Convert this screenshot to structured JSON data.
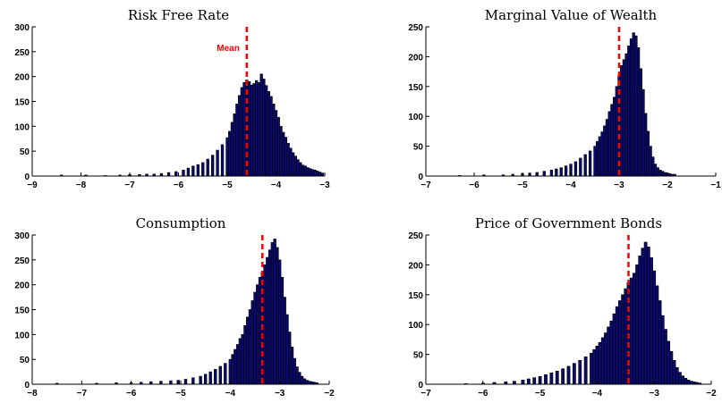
{
  "chart_data": [
    {
      "type": "bar",
      "title": "Risk Free Rate",
      "xlim": [
        -9,
        -3
      ],
      "ylim": [
        0,
        300
      ],
      "xticks": [
        -9,
        -8,
        -7,
        -6,
        -5,
        -4,
        -3
      ],
      "yticks": [
        0,
        50,
        100,
        150,
        200,
        250,
        300
      ],
      "mean": -4.6,
      "mean_label": "Mean",
      "bins": [
        [
          -8.4,
          2
        ],
        [
          -7.9,
          2
        ],
        [
          -7.5,
          1
        ],
        [
          -7.2,
          2
        ],
        [
          -7.0,
          3
        ],
        [
          -6.8,
          3
        ],
        [
          -6.65,
          4
        ],
        [
          -6.5,
          4
        ],
        [
          -6.35,
          5
        ],
        [
          -6.2,
          7
        ],
        [
          -6.05,
          9
        ],
        [
          -5.9,
          12
        ],
        [
          -5.8,
          16
        ],
        [
          -5.7,
          20
        ],
        [
          -5.6,
          23
        ],
        [
          -5.5,
          27
        ],
        [
          -5.4,
          34
        ],
        [
          -5.3,
          42
        ],
        [
          -5.2,
          52
        ],
        [
          -5.1,
          63
        ],
        [
          -5.0,
          77
        ],
        [
          -4.95,
          90
        ],
        [
          -4.9,
          108
        ],
        [
          -4.85,
          125
        ],
        [
          -4.8,
          145
        ],
        [
          -4.75,
          162
        ],
        [
          -4.7,
          178
        ],
        [
          -4.65,
          188
        ],
        [
          -4.6,
          193
        ],
        [
          -4.55,
          190
        ],
        [
          -4.5,
          183
        ],
        [
          -4.45,
          186
        ],
        [
          -4.4,
          192
        ],
        [
          -4.35,
          188
        ],
        [
          -4.3,
          205
        ],
        [
          -4.25,
          195
        ],
        [
          -4.2,
          182
        ],
        [
          -4.15,
          170
        ],
        [
          -4.1,
          160
        ],
        [
          -4.05,
          145
        ],
        [
          -4.0,
          132
        ],
        [
          -3.95,
          118
        ],
        [
          -3.9,
          100
        ],
        [
          -3.85,
          88
        ],
        [
          -3.8,
          78
        ],
        [
          -3.75,
          66
        ],
        [
          -3.7,
          56
        ],
        [
          -3.65,
          47
        ],
        [
          -3.6,
          40
        ],
        [
          -3.55,
          33
        ],
        [
          -3.5,
          27
        ],
        [
          -3.45,
          22
        ],
        [
          -3.4,
          20
        ],
        [
          -3.35,
          17
        ],
        [
          -3.3,
          15
        ],
        [
          -3.25,
          13
        ],
        [
          -3.2,
          12
        ],
        [
          -3.15,
          10
        ],
        [
          -3.1,
          8
        ],
        [
          -3.05,
          6
        ]
      ]
    },
    {
      "type": "bar",
      "title": "Marginal Value of Wealth",
      "xlim": [
        -7,
        -1
      ],
      "ylim": [
        0,
        250
      ],
      "xticks": [
        -7,
        -6,
        -5,
        -4,
        -3,
        -2,
        -1
      ],
      "yticks": [
        0,
        50,
        100,
        150,
        200,
        250
      ],
      "mean": -3.0,
      "bins": [
        [
          -6.3,
          1
        ],
        [
          -5.8,
          2
        ],
        [
          -5.4,
          2
        ],
        [
          -5.2,
          3
        ],
        [
          -5.0,
          4
        ],
        [
          -4.85,
          5
        ],
        [
          -4.7,
          6
        ],
        [
          -4.55,
          8
        ],
        [
          -4.4,
          10
        ],
        [
          -4.3,
          12
        ],
        [
          -4.2,
          14
        ],
        [
          -4.1,
          17
        ],
        [
          -4.0,
          20
        ],
        [
          -3.9,
          24
        ],
        [
          -3.8,
          30
        ],
        [
          -3.7,
          36
        ],
        [
          -3.6,
          42
        ],
        [
          -3.5,
          50
        ],
        [
          -3.45,
          58
        ],
        [
          -3.4,
          66
        ],
        [
          -3.35,
          74
        ],
        [
          -3.3,
          84
        ],
        [
          -3.25,
          95
        ],
        [
          -3.2,
          108
        ],
        [
          -3.15,
          120
        ],
        [
          -3.1,
          132
        ],
        [
          -3.05,
          150
        ],
        [
          -3.0,
          168
        ],
        [
          -2.95,
          185
        ],
        [
          -2.9,
          195
        ],
        [
          -2.85,
          205
        ],
        [
          -2.8,
          218
        ],
        [
          -2.75,
          230
        ],
        [
          -2.7,
          240
        ],
        [
          -2.65,
          235
        ],
        [
          -2.6,
          215
        ],
        [
          -2.55,
          180
        ],
        [
          -2.5,
          145
        ],
        [
          -2.45,
          105
        ],
        [
          -2.4,
          75
        ],
        [
          -2.35,
          50
        ],
        [
          -2.3,
          32
        ],
        [
          -2.25,
          20
        ],
        [
          -2.2,
          14
        ],
        [
          -2.15,
          10
        ],
        [
          -2.1,
          8
        ],
        [
          -2.05,
          6
        ],
        [
          -2.0,
          5
        ],
        [
          -1.95,
          4
        ],
        [
          -1.9,
          3
        ],
        [
          -1.85,
          3
        ]
      ]
    },
    {
      "type": "bar",
      "title": "Consumption",
      "xlim": [
        -8,
        -2
      ],
      "ylim": [
        0,
        300
      ],
      "xticks": [
        -8,
        -7,
        -6,
        -5,
        -4,
        -3,
        -2
      ],
      "yticks": [
        0,
        50,
        100,
        150,
        200,
        250,
        300
      ],
      "mean": -3.35,
      "bins": [
        [
          -7.5,
          2
        ],
        [
          -6.7,
          2
        ],
        [
          -6.3,
          3
        ],
        [
          -6.0,
          3
        ],
        [
          -5.8,
          4
        ],
        [
          -5.6,
          5
        ],
        [
          -5.4,
          6
        ],
        [
          -5.2,
          7
        ],
        [
          -5.05,
          8
        ],
        [
          -4.9,
          10
        ],
        [
          -4.75,
          13
        ],
        [
          -4.6,
          16
        ],
        [
          -4.5,
          20
        ],
        [
          -4.4,
          25
        ],
        [
          -4.3,
          30
        ],
        [
          -4.2,
          36
        ],
        [
          -4.1,
          42
        ],
        [
          -4.0,
          50
        ],
        [
          -3.95,
          60
        ],
        [
          -3.9,
          70
        ],
        [
          -3.85,
          80
        ],
        [
          -3.8,
          92
        ],
        [
          -3.75,
          100
        ],
        [
          -3.7,
          118
        ],
        [
          -3.65,
          135
        ],
        [
          -3.6,
          150
        ],
        [
          -3.55,
          168
        ],
        [
          -3.5,
          185
        ],
        [
          -3.45,
          200
        ],
        [
          -3.4,
          215
        ],
        [
          -3.35,
          225
        ],
        [
          -3.3,
          240
        ],
        [
          -3.25,
          255
        ],
        [
          -3.2,
          270
        ],
        [
          -3.15,
          285
        ],
        [
          -3.1,
          292
        ],
        [
          -3.05,
          275
        ],
        [
          -3.0,
          250
        ],
        [
          -2.95,
          215
        ],
        [
          -2.9,
          175
        ],
        [
          -2.85,
          140
        ],
        [
          -2.8,
          105
        ],
        [
          -2.75,
          75
        ],
        [
          -2.7,
          52
        ],
        [
          -2.65,
          35
        ],
        [
          -2.6,
          24
        ],
        [
          -2.55,
          16
        ],
        [
          -2.5,
          11
        ],
        [
          -2.45,
          8
        ],
        [
          -2.4,
          6
        ],
        [
          -2.35,
          5
        ],
        [
          -2.3,
          4
        ],
        [
          -2.25,
          3
        ]
      ]
    },
    {
      "type": "bar",
      "title": "Price of Government Bonds",
      "xlim": [
        -7,
        -2
      ],
      "ylim": [
        0,
        250
      ],
      "xticks": [
        -7,
        -6,
        -5,
        -4,
        -3,
        -2
      ],
      "yticks": [
        0,
        50,
        100,
        150,
        200,
        250
      ],
      "mean": -3.45,
      "bins": [
        [
          -6.3,
          1
        ],
        [
          -6.0,
          2
        ],
        [
          -5.8,
          3
        ],
        [
          -5.6,
          4
        ],
        [
          -5.45,
          5
        ],
        [
          -5.3,
          7
        ],
        [
          -5.2,
          9
        ],
        [
          -5.1,
          11
        ],
        [
          -5.0,
          13
        ],
        [
          -4.9,
          16
        ],
        [
          -4.8,
          19
        ],
        [
          -4.7,
          22
        ],
        [
          -4.6,
          26
        ],
        [
          -4.5,
          30
        ],
        [
          -4.4,
          35
        ],
        [
          -4.3,
          40
        ],
        [
          -4.2,
          46
        ],
        [
          -4.1,
          52
        ],
        [
          -4.05,
          58
        ],
        [
          -4.0,
          64
        ],
        [
          -3.95,
          70
        ],
        [
          -3.9,
          78
        ],
        [
          -3.85,
          86
        ],
        [
          -3.8,
          96
        ],
        [
          -3.75,
          106
        ],
        [
          -3.7,
          118
        ],
        [
          -3.65,
          130
        ],
        [
          -3.6,
          140
        ],
        [
          -3.55,
          150
        ],
        [
          -3.5,
          160
        ],
        [
          -3.45,
          170
        ],
        [
          -3.4,
          178
        ],
        [
          -3.35,
          186
        ],
        [
          -3.3,
          200
        ],
        [
          -3.25,
          215
        ],
        [
          -3.2,
          228
        ],
        [
          -3.15,
          238
        ],
        [
          -3.1,
          230
        ],
        [
          -3.05,
          212
        ],
        [
          -3.0,
          190
        ],
        [
          -2.95,
          165
        ],
        [
          -2.9,
          140
        ],
        [
          -2.85,
          115
        ],
        [
          -2.8,
          92
        ],
        [
          -2.75,
          72
        ],
        [
          -2.7,
          55
        ],
        [
          -2.65,
          40
        ],
        [
          -2.6,
          28
        ],
        [
          -2.55,
          20
        ],
        [
          -2.5,
          14
        ],
        [
          -2.45,
          10
        ],
        [
          -2.4,
          7
        ],
        [
          -2.35,
          5
        ],
        [
          -2.3,
          4
        ],
        [
          -2.25,
          3
        ],
        [
          -2.2,
          2
        ]
      ]
    }
  ]
}
